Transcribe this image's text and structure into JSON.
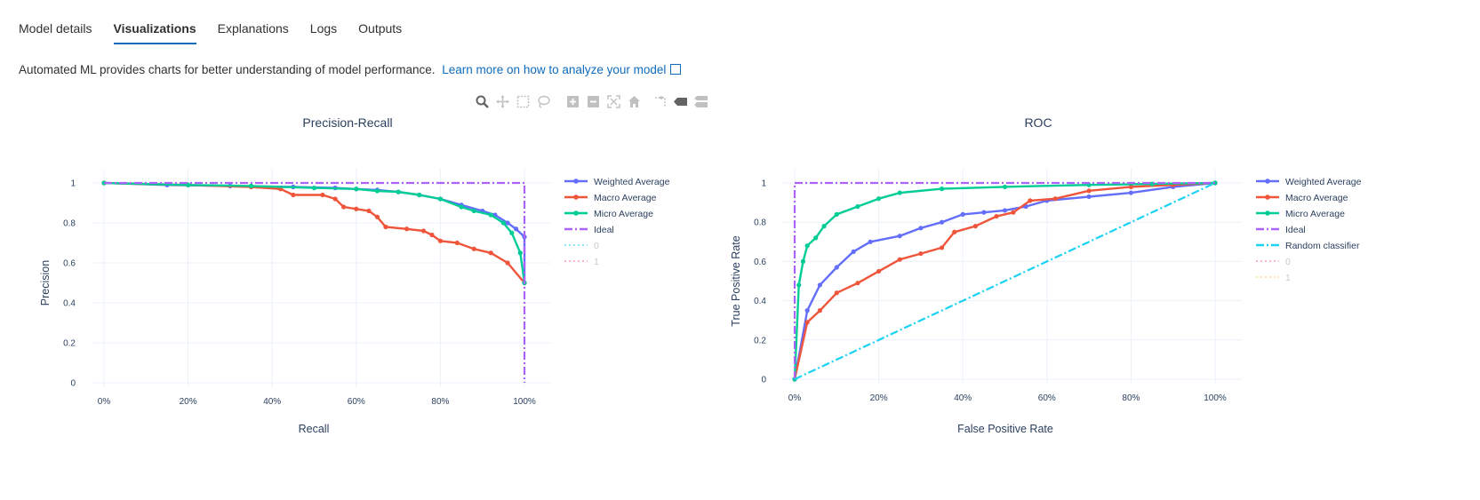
{
  "tabs": [
    {
      "label": "Model details",
      "active": false
    },
    {
      "label": "Visualizations",
      "active": true
    },
    {
      "label": "Explanations",
      "active": false
    },
    {
      "label": "Logs",
      "active": false
    },
    {
      "label": "Outputs",
      "active": false
    }
  ],
  "description": {
    "text": "Automated ML provides charts for better understanding of model performance.",
    "link": "Learn more on how to analyze your model"
  },
  "toolbar": [
    "zoom-icon",
    "pan-icon",
    "box-select-icon",
    "lasso-select-icon",
    "zoom-in-icon",
    "zoom-out-icon",
    "autoscale-icon",
    "reset-axes-icon",
    "spike-lines-icon",
    "hover-closest-icon",
    "hover-compare-icon"
  ],
  "colors": {
    "weighted": "#636efa",
    "macro": "#ef553b",
    "micro": "#00cc96",
    "ideal": "#ab63fa",
    "random": "#19d3f3",
    "grid": "#ebf0f8",
    "legend_dim": "#c8c8c8"
  },
  "chart_data": [
    {
      "type": "line",
      "title": "Precision-Recall",
      "xlabel": "Recall",
      "ylabel": "Precision",
      "xlim": [
        0,
        1
      ],
      "ylim": [
        0,
        1
      ],
      "x_ticks": [
        "0%",
        "20%",
        "40%",
        "60%",
        "80%",
        "100%"
      ],
      "y_ticks": [
        "0",
        "0.2",
        "0.4",
        "0.6",
        "0.8",
        "1"
      ],
      "grid": true,
      "legend_position": "right",
      "series": [
        {
          "name": "Weighted Average",
          "color": "#636efa",
          "markers": true,
          "style": "solid",
          "points": [
            [
              0,
              1
            ],
            [
              0.15,
              0.99
            ],
            [
              0.3,
              0.985
            ],
            [
              0.45,
              0.98
            ],
            [
              0.55,
              0.975
            ],
            [
              0.6,
              0.97
            ],
            [
              0.65,
              0.965
            ],
            [
              0.7,
              0.955
            ],
            [
              0.75,
              0.94
            ],
            [
              0.8,
              0.92
            ],
            [
              0.85,
              0.89
            ],
            [
              0.9,
              0.86
            ],
            [
              0.93,
              0.84
            ],
            [
              0.96,
              0.8
            ],
            [
              0.98,
              0.77
            ],
            [
              1,
              0.73
            ],
            [
              1,
              0.5
            ]
          ]
        },
        {
          "name": "Macro Average",
          "color": "#ef553b",
          "markers": true,
          "style": "solid",
          "points": [
            [
              0,
              1
            ],
            [
              0.2,
              0.99
            ],
            [
              0.35,
              0.98
            ],
            [
              0.42,
              0.97
            ],
            [
              0.45,
              0.94
            ],
            [
              0.52,
              0.94
            ],
            [
              0.55,
              0.92
            ],
            [
              0.57,
              0.88
            ],
            [
              0.6,
              0.87
            ],
            [
              0.63,
              0.86
            ],
            [
              0.65,
              0.83
            ],
            [
              0.67,
              0.78
            ],
            [
              0.72,
              0.77
            ],
            [
              0.76,
              0.76
            ],
            [
              0.78,
              0.74
            ],
            [
              0.8,
              0.71
            ],
            [
              0.84,
              0.7
            ],
            [
              0.88,
              0.67
            ],
            [
              0.92,
              0.65
            ],
            [
              0.96,
              0.6
            ],
            [
              1,
              0.5
            ]
          ]
        },
        {
          "name": "Micro Average",
          "color": "#00cc96",
          "markers": true,
          "style": "solid",
          "points": [
            [
              0,
              1
            ],
            [
              0.2,
              0.99
            ],
            [
              0.35,
              0.985
            ],
            [
              0.5,
              0.975
            ],
            [
              0.6,
              0.97
            ],
            [
              0.65,
              0.96
            ],
            [
              0.7,
              0.955
            ],
            [
              0.75,
              0.94
            ],
            [
              0.8,
              0.92
            ],
            [
              0.85,
              0.88
            ],
            [
              0.88,
              0.86
            ],
            [
              0.92,
              0.84
            ],
            [
              0.95,
              0.8
            ],
            [
              0.97,
              0.75
            ],
            [
              0.99,
              0.65
            ],
            [
              1,
              0.5
            ]
          ]
        },
        {
          "name": "Ideal",
          "color": "#ab63fa",
          "markers": false,
          "style": "dashdot",
          "points": [
            [
              0,
              1
            ],
            [
              1,
              1
            ],
            [
              1,
              0
            ]
          ]
        },
        {
          "name": "0",
          "color": "#19d3f3",
          "markers": false,
          "style": "dot",
          "hidden": true,
          "points": []
        },
        {
          "name": "1",
          "color": "#ff6692",
          "markers": false,
          "style": "dot",
          "hidden": true,
          "points": []
        }
      ]
    },
    {
      "type": "line",
      "title": "ROC",
      "xlabel": "False Positive Rate",
      "ylabel": "True Positive Rate",
      "xlim": [
        0,
        1
      ],
      "ylim": [
        0,
        1
      ],
      "x_ticks": [
        "0%",
        "20%",
        "40%",
        "60%",
        "80%",
        "100%"
      ],
      "y_ticks": [
        "0",
        "0.2",
        "0.4",
        "0.6",
        "0.8",
        "1"
      ],
      "grid": true,
      "legend_position": "right",
      "series": [
        {
          "name": "Weighted Average",
          "color": "#636efa",
          "markers": true,
          "style": "solid",
          "points": [
            [
              0,
              0
            ],
            [
              0.03,
              0.35
            ],
            [
              0.06,
              0.48
            ],
            [
              0.1,
              0.57
            ],
            [
              0.14,
              0.65
            ],
            [
              0.18,
              0.7
            ],
            [
              0.25,
              0.73
            ],
            [
              0.3,
              0.77
            ],
            [
              0.35,
              0.8
            ],
            [
              0.4,
              0.84
            ],
            [
              0.45,
              0.85
            ],
            [
              0.5,
              0.86
            ],
            [
              0.55,
              0.88
            ],
            [
              0.6,
              0.91
            ],
            [
              0.7,
              0.93
            ],
            [
              0.8,
              0.95
            ],
            [
              0.9,
              0.98
            ],
            [
              1,
              1
            ]
          ]
        },
        {
          "name": "Macro Average",
          "color": "#ef553b",
          "markers": true,
          "style": "solid",
          "points": [
            [
              0,
              0
            ],
            [
              0.03,
              0.29
            ],
            [
              0.06,
              0.35
            ],
            [
              0.1,
              0.44
            ],
            [
              0.15,
              0.49
            ],
            [
              0.2,
              0.55
            ],
            [
              0.25,
              0.61
            ],
            [
              0.3,
              0.64
            ],
            [
              0.35,
              0.67
            ],
            [
              0.38,
              0.75
            ],
            [
              0.43,
              0.78
            ],
            [
              0.48,
              0.83
            ],
            [
              0.52,
              0.85
            ],
            [
              0.56,
              0.91
            ],
            [
              0.62,
              0.92
            ],
            [
              0.7,
              0.96
            ],
            [
              0.8,
              0.98
            ],
            [
              0.9,
              0.99
            ],
            [
              1,
              1
            ]
          ]
        },
        {
          "name": "Micro Average",
          "color": "#00cc96",
          "markers": true,
          "style": "solid",
          "points": [
            [
              0,
              0
            ],
            [
              0.01,
              0.48
            ],
            [
              0.02,
              0.6
            ],
            [
              0.03,
              0.68
            ],
            [
              0.05,
              0.72
            ],
            [
              0.07,
              0.78
            ],
            [
              0.1,
              0.84
            ],
            [
              0.15,
              0.88
            ],
            [
              0.2,
              0.92
            ],
            [
              0.25,
              0.95
            ],
            [
              0.35,
              0.97
            ],
            [
              0.5,
              0.98
            ],
            [
              0.7,
              0.99
            ],
            [
              0.85,
              0.995
            ],
            [
              1,
              1
            ]
          ]
        },
        {
          "name": "Ideal",
          "color": "#ab63fa",
          "markers": false,
          "style": "dashdot",
          "points": [
            [
              0,
              0
            ],
            [
              0,
              1
            ],
            [
              1,
              1
            ]
          ]
        },
        {
          "name": "Random classifier",
          "color": "#19d3f3",
          "markers": false,
          "style": "dashdot",
          "points": [
            [
              0,
              0
            ],
            [
              1,
              1
            ]
          ]
        },
        {
          "name": "0",
          "color": "#ff6692",
          "markers": false,
          "style": "dot",
          "hidden": true,
          "points": []
        },
        {
          "name": "1",
          "color": "#fecb52",
          "markers": false,
          "style": "dot",
          "hidden": true,
          "points": []
        }
      ]
    }
  ]
}
